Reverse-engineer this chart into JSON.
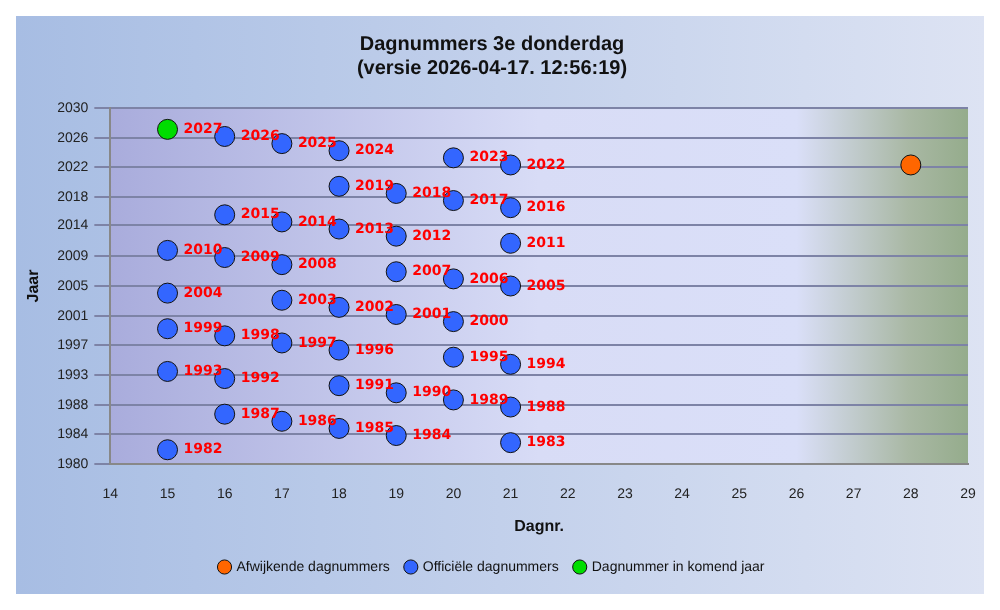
{
  "chart_data": {
    "type": "scatter",
    "title": "Dagnummers 3e donderdag",
    "subtitle": "(versie 2026-04-17. 12:56:19)",
    "xlabel": "Dagnr.",
    "ylabel": "Jaar",
    "xlim": [
      14,
      29
    ],
    "xticks": [
      14,
      15,
      16,
      17,
      18,
      19,
      20,
      21,
      22,
      23,
      24,
      25,
      26,
      27,
      28,
      29
    ],
    "ylim": [
      1980,
      2030
    ],
    "yticks": [
      1980,
      {
        "value": 1984.17,
        "label": "1984"
      },
      {
        "value": 1988.33,
        "label": "1988"
      },
      {
        "value": 1992.5,
        "label": "1993"
      },
      {
        "value": 1996.67,
        "label": "1997"
      },
      {
        "value": 2000.83,
        "label": "2001"
      },
      2005,
      {
        "value": 2009.17,
        "label": "2009"
      },
      {
        "value": 2013.5,
        "label": "2014"
      },
      {
        "value": 2017.5,
        "label": "2018"
      },
      {
        "value": 2021.67,
        "label": "2022"
      },
      {
        "value": 2025.83,
        "label": "2026"
      },
      2030
    ],
    "grid": "y",
    "legend": "bottom",
    "marker": "circle",
    "series": [
      {
        "name": "Afwijkende dagnummers",
        "color": "#ff6600",
        "x": [
          28
        ],
        "values": [
          2022
        ]
      },
      {
        "name": "Officiële dagnummers",
        "color": "#3366ff",
        "x": [
          16,
          17,
          18,
          20,
          21,
          18,
          19,
          20,
          21,
          16,
          17,
          18,
          19,
          21,
          15,
          16,
          17,
          19,
          20,
          21,
          15,
          17,
          18,
          19,
          20,
          15,
          16,
          17,
          18,
          20,
          21,
          15,
          16,
          18,
          19,
          20,
          21,
          16,
          17,
          18,
          19,
          21,
          15
        ],
        "values": [
          2026,
          2025,
          2024,
          2023,
          2022,
          2019,
          2018,
          2017,
          2016,
          2015,
          2014,
          2013,
          2012,
          2011,
          2010,
          2009,
          2008,
          2007,
          2006,
          2005,
          2004,
          2003,
          2002,
          2001,
          2000,
          1999,
          1998,
          1997,
          1996,
          1995,
          1994,
          1993,
          1992,
          1991,
          1990,
          1989,
          1988,
          1987,
          1986,
          1985,
          1984,
          1983,
          1982
        ],
        "value_labels": [
          "2026",
          "2025",
          "2024",
          "2023",
          "2022",
          "2019",
          "2018",
          "2017",
          "2016",
          "2015",
          "2014",
          "2013",
          "2012",
          "2011",
          "2010",
          "2009",
          "2008",
          "2007",
          "2006",
          "2005",
          "2004",
          "2003",
          "2002",
          "2001",
          "2000",
          "1999",
          "1998",
          "1997",
          "1996",
          "1995",
          "1994",
          "1993",
          "1992",
          "1991",
          "1990",
          "1989",
          "1988",
          "1987",
          "1986",
          "1985",
          "1984",
          "1983",
          "1982"
        ]
      },
      {
        "name": "Dagnummer in komend jaar",
        "color": "#00dd00",
        "x": [
          15
        ],
        "values": [
          2027
        ],
        "value_labels": [
          "2027"
        ]
      }
    ]
  }
}
